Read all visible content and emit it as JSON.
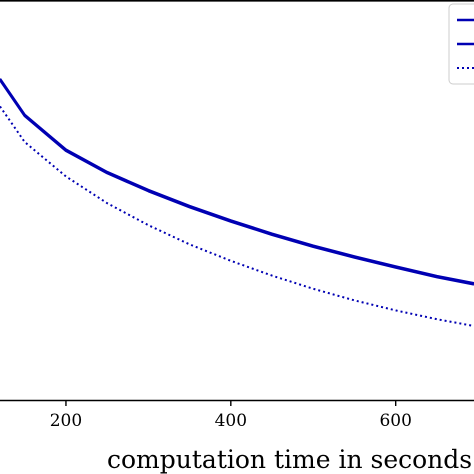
{
  "chart_data": {
    "type": "line",
    "title": "",
    "xlabel": "computation time in seconds",
    "ylabel": "",
    "xlim": [
      120,
      695
    ],
    "ylim": [
      0,
      1
    ],
    "x_ticks": [
      {
        "value": 200,
        "label": "200"
      },
      {
        "value": 400,
        "label": "400"
      },
      {
        "value": 600,
        "label": "600"
      }
    ],
    "grid": false,
    "legend": {
      "position": "top-right",
      "entries": 3
    },
    "series": [
      {
        "style": "solid",
        "color": "#0000b3",
        "x": [
          120,
          150,
          200,
          250,
          300,
          350,
          400,
          450,
          500,
          550,
          600,
          650,
          695
        ],
        "y": [
          0.8,
          0.71,
          0.623,
          0.567,
          0.522,
          0.482,
          0.446,
          0.413,
          0.383,
          0.356,
          0.331,
          0.307,
          0.289
        ]
      },
      {
        "style": "solid",
        "color": "#0000b3",
        "x": [
          120,
          150,
          200,
          250,
          300,
          350,
          400,
          450,
          500,
          550,
          600,
          650,
          695
        ],
        "y": [
          0.803,
          0.713,
          0.626,
          0.57,
          0.525,
          0.485,
          0.449,
          0.416,
          0.386,
          0.359,
          0.334,
          0.31,
          0.292
        ]
      },
      {
        "style": "dotted",
        "color": "#0000b3",
        "x": [
          120,
          150,
          200,
          250,
          300,
          350,
          400,
          450,
          500,
          550,
          600,
          650,
          695
        ],
        "y": [
          0.734,
          0.645,
          0.559,
          0.492,
          0.437,
          0.389,
          0.348,
          0.311,
          0.278,
          0.249,
          0.224,
          0.202,
          0.185
        ]
      }
    ]
  }
}
